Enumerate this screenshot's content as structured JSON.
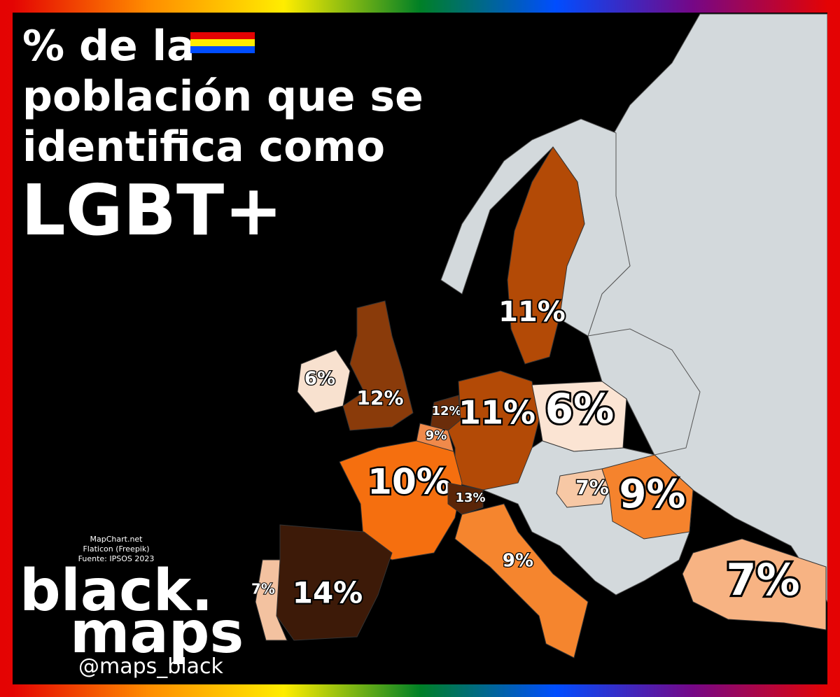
{
  "title": {
    "lines": [
      "% de la",
      "población que se",
      "identifica como",
      "LGBT+"
    ]
  },
  "credits": [
    "MapChart.net",
    "Flaticon (Freepik)",
    "Fuente: IPSOS 2023"
  ],
  "logo": {
    "line1": "black.",
    "line2": "maps",
    "handle": "@maps_black"
  },
  "regions": [
    {
      "label": "11%",
      "color": "#b34a06"
    },
    {
      "label": "12%",
      "color": "#8a3b0a"
    },
    {
      "label": "6%",
      "color": "#f8e1cf"
    },
    {
      "label": "12%",
      "color": "#6b2d0a"
    },
    {
      "label": "9%",
      "color": "#f08a4b"
    },
    {
      "label": "11%",
      "color": "#b34a06"
    },
    {
      "label": "6%",
      "color": "#fbe4d3"
    },
    {
      "label": "10%",
      "color": "#f56f0f"
    },
    {
      "label": "13%",
      "color": "#5a2508"
    },
    {
      "label": "14%",
      "color": "#3d1a08"
    },
    {
      "label": "7%",
      "color": "#f3c2a0"
    },
    {
      "label": "9%",
      "color": "#f5852e"
    },
    {
      "label": "7%",
      "color": "#f7c8a5"
    },
    {
      "label": "9%",
      "color": "#f5832d"
    },
    {
      "label": "7%",
      "color": "#f7b383"
    }
  ]
}
